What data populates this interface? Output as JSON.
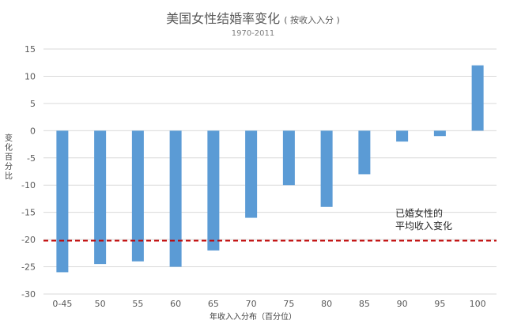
{
  "chart_data": {
    "type": "bar",
    "title": "美国女性结婚率变化",
    "title_note": "( 按收入入分 )",
    "subtitle": "1970-2011",
    "xlabel": "年收入入分布（百分位）",
    "ylabel": "变化百分比",
    "categories": [
      "0-45",
      "50",
      "55",
      "60",
      "65",
      "70",
      "75",
      "80",
      "85",
      "90",
      "95",
      "100"
    ],
    "values": [
      -26,
      -24.5,
      -24,
      -25,
      -22,
      -16,
      -10,
      -14,
      -8,
      -2,
      -1,
      12
    ],
    "ylim": [
      -30,
      15
    ],
    "yticks": [
      15,
      10,
      5,
      0,
      -5,
      -10,
      -15,
      -20,
      -25,
      -30
    ],
    "grid": true,
    "bar_color": "#5b9bd5",
    "reference_line": {
      "value": -20.2,
      "color": "#c00000",
      "label_line1": "已婚女性的",
      "label_line2": "平均收入变化"
    }
  }
}
